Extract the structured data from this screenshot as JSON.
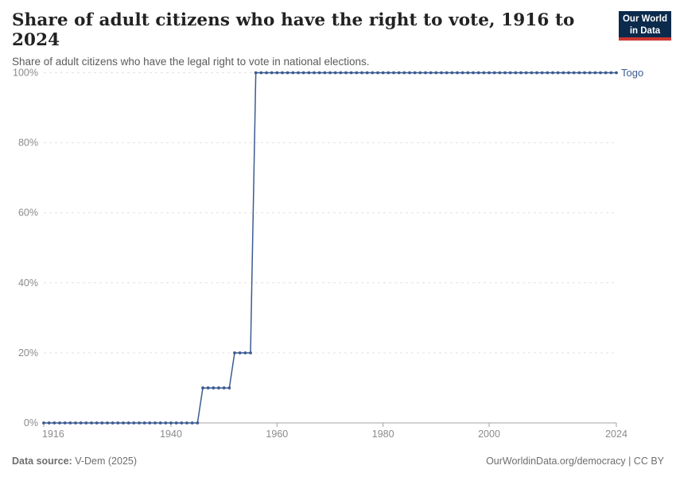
{
  "header": {
    "title": "Share of adult citizens who have the right to vote, 1916 to 2024",
    "subtitle": "Share of adult citizens who have the legal right to vote in national elections.",
    "logo": {
      "line1": "Our World",
      "line2": "in Data"
    }
  },
  "chart_data": {
    "type": "line",
    "title": "Share of adult citizens who have the right to vote, 1916 to 2024",
    "series": [
      {
        "name": "Togo",
        "x_start": 1916,
        "x_end": 2024,
        "values": [
          0,
          0,
          0,
          0,
          0,
          0,
          0,
          0,
          0,
          0,
          0,
          0,
          0,
          0,
          0,
          0,
          0,
          0,
          0,
          0,
          0,
          0,
          0,
          0,
          0,
          0,
          0,
          0,
          0,
          0,
          10,
          10,
          10,
          10,
          10,
          10,
          20,
          20,
          20,
          20,
          100,
          100,
          100,
          100,
          100,
          100,
          100,
          100,
          100,
          100,
          100,
          100,
          100,
          100,
          100,
          100,
          100,
          100,
          100,
          100,
          100,
          100,
          100,
          100,
          100,
          100,
          100,
          100,
          100,
          100,
          100,
          100,
          100,
          100,
          100,
          100,
          100,
          100,
          100,
          100,
          100,
          100,
          100,
          100,
          100,
          100,
          100,
          100,
          100,
          100,
          100,
          100,
          100,
          100,
          100,
          100,
          100,
          100,
          100,
          100,
          100,
          100,
          100,
          100,
          100,
          100,
          100,
          100,
          100
        ]
      }
    ],
    "xlabel": "",
    "ylabel": "",
    "ylim": [
      0,
      100
    ],
    "xlim": [
      1916,
      2024
    ],
    "y_ticks": [
      0,
      20,
      40,
      60,
      80,
      100
    ],
    "y_tick_suffix": "%",
    "x_ticks": [
      1916,
      1940,
      1960,
      1980,
      2000,
      2024
    ],
    "grid": "horizontal-dashed",
    "legend_position": "end-of-line-label",
    "entity_label": "Togo",
    "line_color": "#3b5b92",
    "grid_color": "#e2e2e2",
    "axis_color": "#a3a3a3",
    "tick_label_color": "#8b8b8b"
  },
  "footer": {
    "source_label": "Data source:",
    "source_value": " V-Dem (2025)",
    "right_text": "OurWorldinData.org/democracy | CC BY"
  },
  "colors": {
    "accent_blue": "#3b5b92",
    "logo_navy": "#0b2a4c",
    "logo_red": "#cd3731",
    "title_color": "#222222",
    "subtitle_color": "#5b5b5b"
  }
}
